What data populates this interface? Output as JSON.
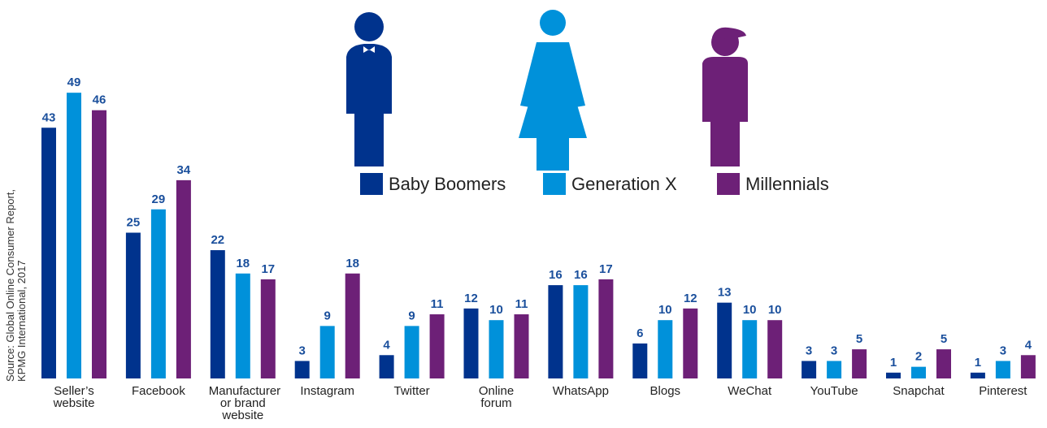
{
  "chart_data": {
    "type": "bar",
    "source": "Source: Global Online Consumer Report, KPMG International, 2017",
    "categories": [
      "Seller’s website",
      "Facebook",
      "Manufacturer or brand website",
      "Instagram",
      "Twitter",
      "Online forum",
      "WhatsApp",
      "Blogs",
      "WeChat",
      "YouTube",
      "Snapchat",
      "Pinterest"
    ],
    "series": [
      {
        "name": "Baby Boomers",
        "color": "#00338d",
        "values": [
          43,
          25,
          22,
          3,
          4,
          12,
          16,
          6,
          13,
          3,
          1,
          1
        ]
      },
      {
        "name": "Generation X",
        "color": "#0091da",
        "values": [
          49,
          29,
          18,
          9,
          9,
          10,
          16,
          10,
          10,
          3,
          2,
          3
        ]
      },
      {
        "name": "Millennials",
        "color": "#6d2077",
        "values": [
          46,
          34,
          17,
          18,
          11,
          11,
          17,
          12,
          10,
          5,
          5,
          4
        ]
      }
    ],
    "value_label_color": "#1a4f9c"
  }
}
